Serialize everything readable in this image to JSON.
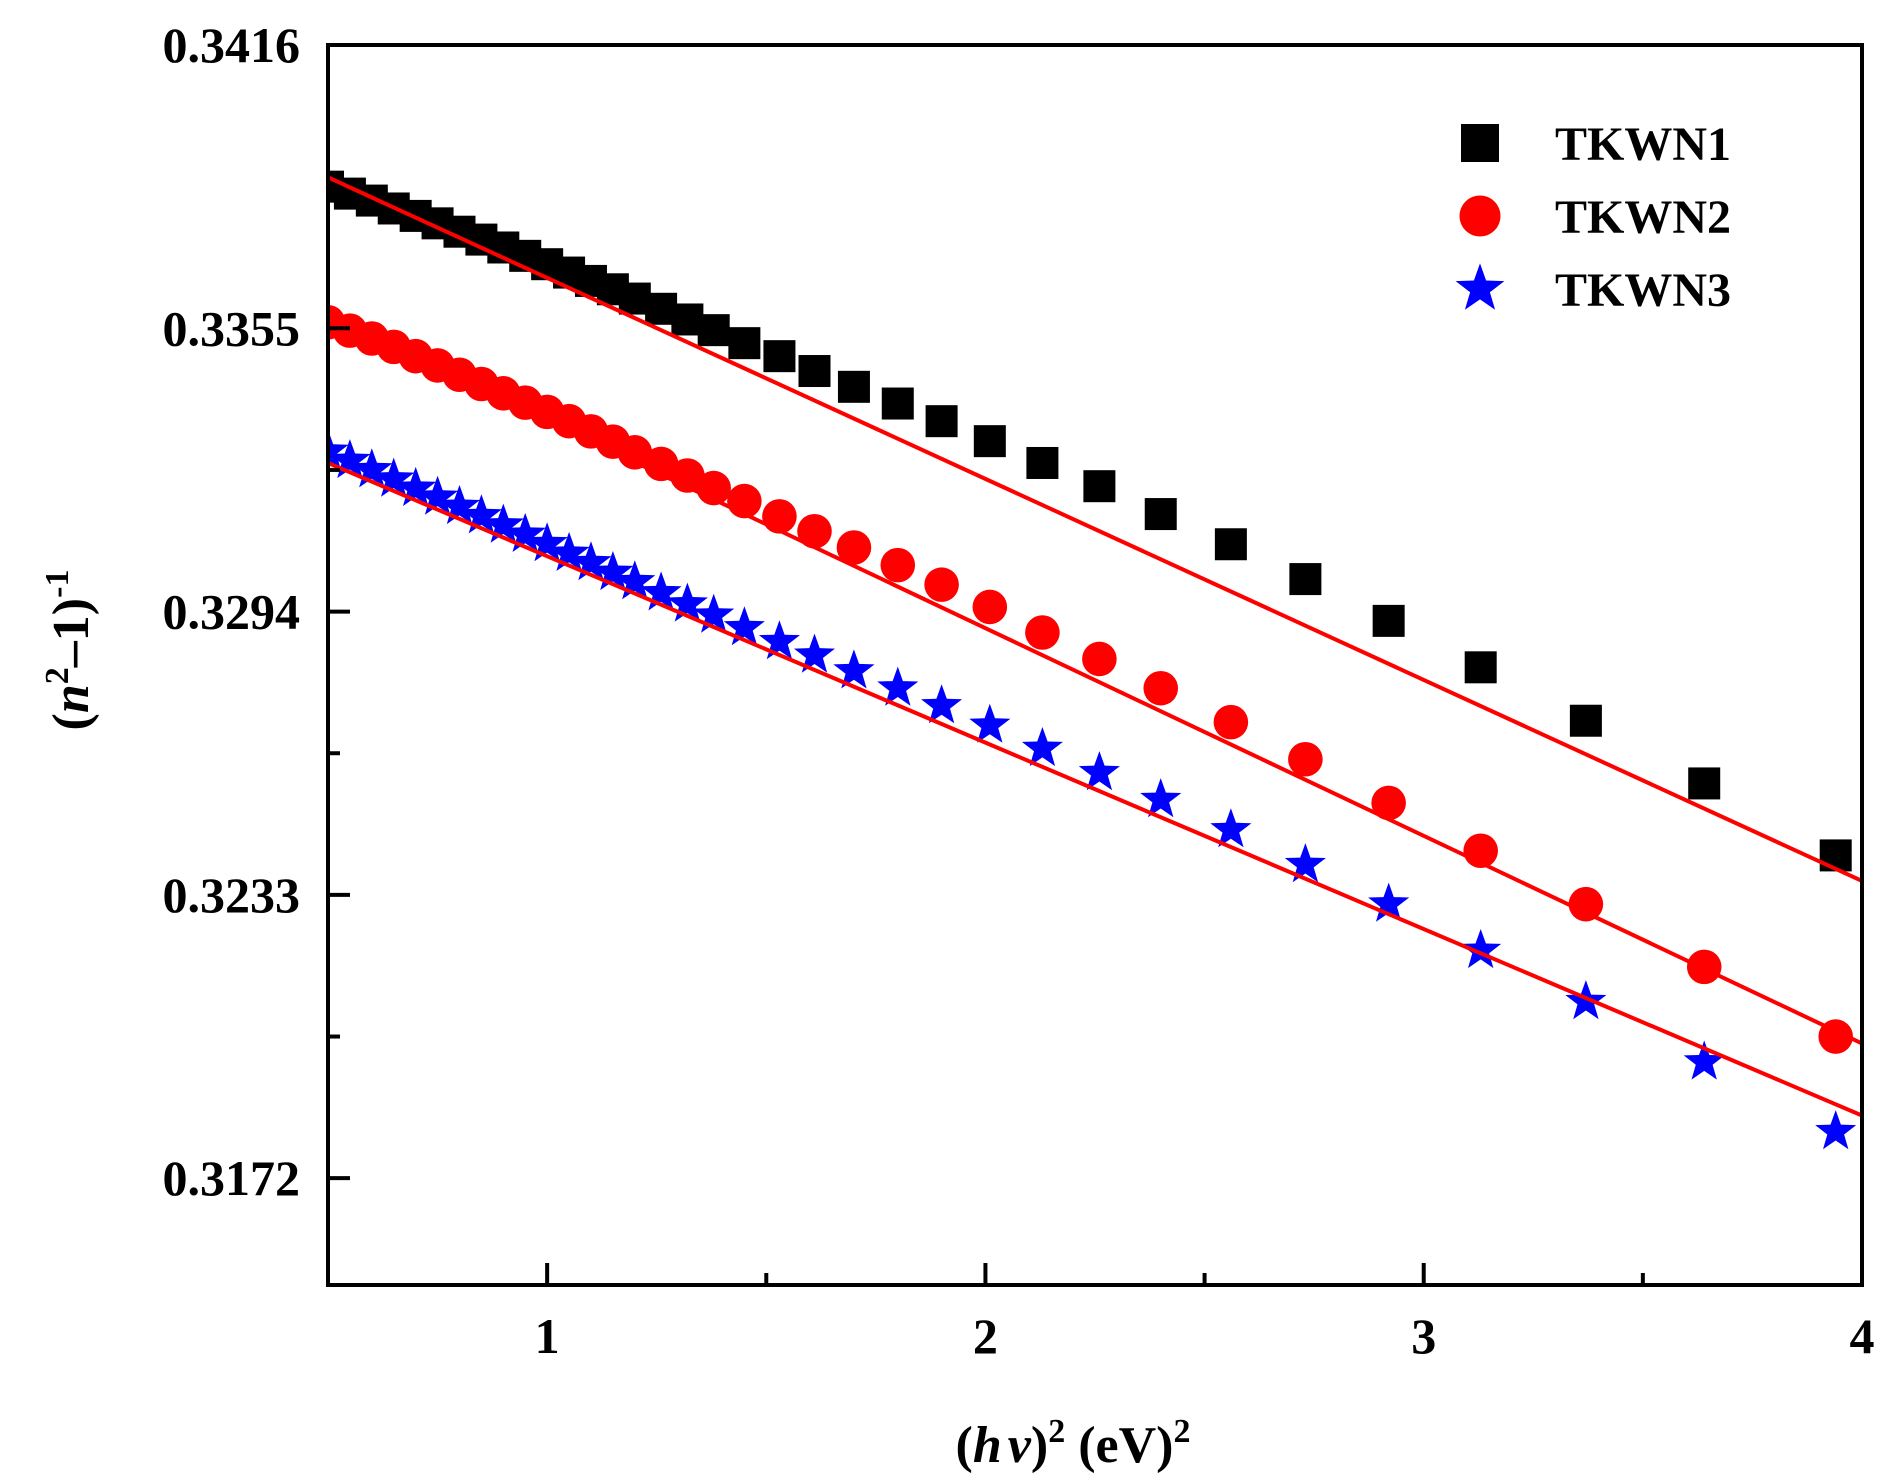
{
  "chart_data": {
    "type": "scatter",
    "title": "",
    "xlabel": {
      "open": "(",
      "h": "h",
      "nu": "ν",
      "close": ")",
      "sup": "2",
      "unit": " (eV)",
      "unit_sup": "2"
    },
    "ylabel": {
      "open": "(",
      "n": "n",
      "sup": "2",
      "minus_one": "–1)",
      "exp": "-1"
    },
    "xlim": [
      0.5,
      4.0
    ],
    "ylim": [
      0.3149,
      0.3416
    ],
    "x_ticks": [
      1,
      2,
      3,
      4
    ],
    "x_tick_labels": [
      "1",
      "2",
      "3",
      "4"
    ],
    "x_minor_ticks": [
      0.5,
      1.5,
      2.5,
      3.5
    ],
    "y_ticks": [
      0.3172,
      0.3233,
      0.3294,
      0.3355,
      0.3416
    ],
    "y_tick_labels": [
      "0.3172",
      "0.3233",
      "0.3294",
      "0.3355",
      "0.3416"
    ],
    "y_minor_ticks": [
      0.32025,
      0.32635,
      0.33245,
      0.33855
    ],
    "legend_position": "top-right",
    "fit_color": "#ff0000",
    "series": [
      {
        "name": "TKWN1",
        "marker": "square",
        "color": "#000000",
        "x": [
          0.5,
          0.55,
          0.6,
          0.65,
          0.7,
          0.75,
          0.8,
          0.85,
          0.9,
          0.95,
          1.0,
          1.05,
          1.1,
          1.15,
          1.2,
          1.26,
          1.32,
          1.38,
          1.45,
          1.53,
          1.61,
          1.7,
          1.8,
          1.9,
          2.01,
          2.13,
          2.26,
          2.4,
          2.56,
          2.73,
          2.92,
          3.13,
          3.37,
          3.64,
          3.94
        ],
        "y": [
          0.33855,
          0.3384,
          0.33825,
          0.33808,
          0.33792,
          0.33776,
          0.33758,
          0.33741,
          0.33724,
          0.33706,
          0.33688,
          0.3367,
          0.33652,
          0.33634,
          0.33614,
          0.33592,
          0.33569,
          0.33546,
          0.33518,
          0.3349,
          0.33458,
          0.33424,
          0.33388,
          0.3335,
          0.33307,
          0.3326,
          0.3321,
          0.3315,
          0.33085,
          0.3301,
          0.3292,
          0.3282,
          0.32705,
          0.3257,
          0.32415
        ],
        "fit": {
          "x": [
            0.5,
            4.0
          ],
          "y": [
            0.33875,
            0.3236
          ]
        }
      },
      {
        "name": "TKWN2",
        "marker": "circle",
        "color": "#ff0000",
        "x": [
          0.5,
          0.55,
          0.6,
          0.65,
          0.7,
          0.75,
          0.8,
          0.85,
          0.9,
          0.95,
          1.0,
          1.05,
          1.1,
          1.15,
          1.2,
          1.26,
          1.32,
          1.38,
          1.45,
          1.53,
          1.61,
          1.7,
          1.8,
          1.9,
          2.01,
          2.13,
          2.26,
          2.4,
          2.56,
          2.73,
          2.92,
          3.13,
          3.37,
          3.64,
          3.94
        ],
        "y": [
          0.33563,
          0.33545,
          0.33528,
          0.3351,
          0.3349,
          0.3347,
          0.3345,
          0.3343,
          0.3341,
          0.3339,
          0.3337,
          0.3335,
          0.33328,
          0.33306,
          0.33283,
          0.33258,
          0.33233,
          0.33206,
          0.33178,
          0.33145,
          0.33113,
          0.33078,
          0.3304,
          0.32998,
          0.3295,
          0.32895,
          0.32838,
          0.32775,
          0.32702,
          0.32622,
          0.32528,
          0.32425,
          0.3231,
          0.32175,
          0.32025
        ],
        "fit": {
          "x": [
            0.5,
            4.0
          ],
          "y": [
            0.33575,
            0.3201
          ]
        }
      },
      {
        "name": "TKWN3",
        "marker": "star",
        "color": "#0000ff",
        "x": [
          0.5,
          0.55,
          0.6,
          0.65,
          0.7,
          0.75,
          0.8,
          0.85,
          0.9,
          0.95,
          1.0,
          1.05,
          1.1,
          1.15,
          1.2,
          1.26,
          1.32,
          1.38,
          1.45,
          1.53,
          1.61,
          1.7,
          1.8,
          1.9,
          2.01,
          2.13,
          2.26,
          2.4,
          2.56,
          2.73,
          2.92,
          3.13,
          3.37,
          3.64,
          3.94
        ],
        "y": [
          0.33285,
          0.33265,
          0.33245,
          0.33225,
          0.33205,
          0.33186,
          0.33166,
          0.33146,
          0.33126,
          0.33106,
          0.33086,
          0.33065,
          0.33045,
          0.33024,
          0.33004,
          0.3298,
          0.32956,
          0.32932,
          0.32905,
          0.32875,
          0.32846,
          0.32812,
          0.32775,
          0.32737,
          0.32695,
          0.32645,
          0.32593,
          0.32535,
          0.3247,
          0.32395,
          0.3231,
          0.3221,
          0.321,
          0.3197,
          0.3182
        ],
        "fit": {
          "x": [
            0.5,
            4.0
          ],
          "y": [
            0.3326,
            0.31855
          ]
        }
      }
    ]
  }
}
